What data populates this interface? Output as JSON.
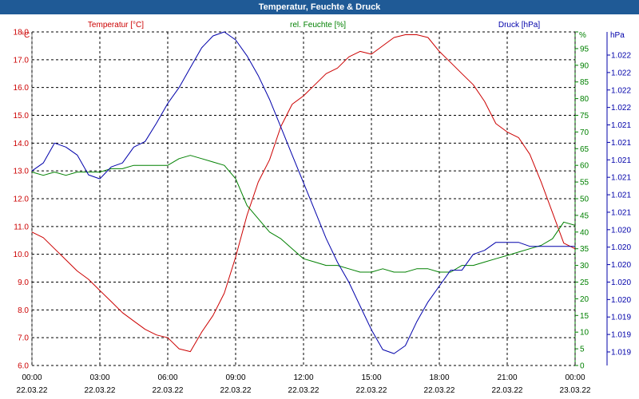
{
  "window": {
    "title": "Temperatur, Feuchte & Druck"
  },
  "colors": {
    "temperature": "#cc0000",
    "humidity": "#008000",
    "pressure": "#0000aa",
    "title_bar": "#1f5a96"
  },
  "chart_data": {
    "type": "line",
    "title": "Temperatur, Feuchte & Druck",
    "grid": true,
    "x_axis": {
      "range": [
        "22.03.22 00:00",
        "23.03.22 00:00"
      ],
      "ticks": [
        {
          "time": "00:00",
          "date": "22.03.22"
        },
        {
          "time": "03:00",
          "date": "22.03.22"
        },
        {
          "time": "06:00",
          "date": "22.03.22"
        },
        {
          "time": "09:00",
          "date": "22.03.22"
        },
        {
          "time": "12:00",
          "date": "22.03.22"
        },
        {
          "time": "15:00",
          "date": "22.03.22"
        },
        {
          "time": "18:00",
          "date": "22.03.22"
        },
        {
          "time": "21:00",
          "date": "22.03.22"
        },
        {
          "time": "00:00",
          "date": "23.03.22"
        }
      ]
    },
    "y_axes": {
      "temperature": {
        "legend": "Temperatur [°C]",
        "unit": "°C",
        "range": [
          6.0,
          18.0
        ],
        "ticks": [
          "18.0",
          "17.0",
          "16.0",
          "15.0",
          "14.0",
          "13.0",
          "12.0",
          "11.0",
          "10.0",
          "9.0",
          "8.0",
          "7.0",
          "6.0"
        ]
      },
      "humidity": {
        "legend": "rel. Feuchte [%]",
        "unit": "%",
        "range": [
          0,
          100
        ],
        "ticks": [
          "100",
          "95",
          "90",
          "85",
          "80",
          "75",
          "70",
          "65",
          "60",
          "55",
          "50",
          "45",
          "40",
          "35",
          "30",
          "25",
          "20",
          "15",
          "10",
          "5",
          "0"
        ]
      },
      "pressure": {
        "legend": "Druck [hPa]",
        "unit": "hPa",
        "range": [
          1018.8,
          1023.0
        ],
        "ticks": [
          "1.022",
          "1.022",
          "1.022",
          "1.022",
          "1.021",
          "1.021",
          "1.021",
          "1.021",
          "1.021",
          "1.021",
          "1.020",
          "1.020",
          "1.020",
          "1.020",
          "1.020",
          "1.019",
          "1.019",
          "1.019"
        ]
      }
    },
    "series": [
      {
        "name": "Temperatur [°C]",
        "axis": "temperature",
        "hours": [
          0,
          0.5,
          1,
          1.5,
          2,
          2.5,
          3,
          3.5,
          4,
          4.5,
          5,
          5.5,
          6,
          6.5,
          7,
          7.5,
          8,
          8.5,
          9,
          9.5,
          10,
          10.5,
          11,
          11.5,
          12,
          12.5,
          13,
          13.5,
          14,
          14.5,
          15,
          15.5,
          16,
          16.5,
          17,
          17.5,
          18,
          18.5,
          19,
          19.5,
          20,
          20.5,
          21,
          21.5,
          22,
          22.5,
          23,
          23.5,
          24
        ],
        "values": [
          10.8,
          10.6,
          10.2,
          9.8,
          9.4,
          9.1,
          8.7,
          8.3,
          7.9,
          7.6,
          7.3,
          7.1,
          7.0,
          6.6,
          6.5,
          7.2,
          7.8,
          8.6,
          9.9,
          11.4,
          12.6,
          13.4,
          14.6,
          15.4,
          15.7,
          16.1,
          16.5,
          16.7,
          17.1,
          17.3,
          17.2,
          17.5,
          17.8,
          17.9,
          17.9,
          17.8,
          17.3,
          16.9,
          16.5,
          16.1,
          15.5,
          14.7,
          14.4,
          14.2,
          13.6,
          12.6,
          11.5,
          10.4,
          10.2
        ]
      },
      {
        "name": "rel. Feuchte [%]",
        "axis": "humidity",
        "hours": [
          0,
          0.5,
          1,
          1.5,
          2,
          2.5,
          3,
          3.5,
          4,
          4.5,
          5,
          5.5,
          6,
          6.5,
          7,
          7.5,
          8,
          8.5,
          9,
          9.5,
          10,
          10.5,
          11,
          11.5,
          12,
          12.5,
          13,
          13.5,
          14,
          14.5,
          15,
          15.5,
          16,
          16.5,
          17,
          17.5,
          18,
          18.5,
          19,
          19.5,
          20,
          20.5,
          21,
          21.5,
          22,
          22.5,
          23,
          23.5,
          24
        ],
        "values": [
          58,
          57,
          58,
          57,
          58,
          58,
          58,
          59,
          59,
          60,
          60,
          60,
          60,
          62,
          63,
          62,
          61,
          60,
          56,
          48,
          44,
          40,
          38,
          35,
          32,
          31,
          30,
          30,
          29,
          28,
          28,
          29,
          28,
          28,
          29,
          29,
          28,
          28,
          30,
          30,
          31,
          32,
          33,
          34,
          35,
          36,
          38,
          43,
          42
        ]
      },
      {
        "name": "Druck [hPa]",
        "axis": "pressure",
        "hours": [
          0,
          0.5,
          1,
          1.5,
          2,
          2.5,
          3,
          3.5,
          4,
          4.5,
          5,
          5.5,
          6,
          6.5,
          7,
          7.5,
          8,
          8.5,
          9,
          9.5,
          10,
          10.5,
          11,
          11.5,
          12,
          12.5,
          13,
          13.5,
          14,
          14.5,
          15,
          15.5,
          16,
          16.5,
          17,
          17.5,
          18,
          18.5,
          19,
          19.5,
          20,
          20.5,
          21,
          21.5,
          22,
          22.5,
          23,
          23.5,
          24
        ],
        "values": [
          1021.25,
          1021.35,
          1021.6,
          1021.55,
          1021.45,
          1021.2,
          1021.15,
          1021.3,
          1021.35,
          1021.55,
          1021.62,
          1021.85,
          1022.1,
          1022.3,
          1022.55,
          1022.8,
          1022.95,
          1023.0,
          1022.9,
          1022.7,
          1022.45,
          1022.15,
          1021.8,
          1021.45,
          1021.1,
          1020.75,
          1020.4,
          1020.1,
          1019.85,
          1019.55,
          1019.25,
          1019.0,
          1018.95,
          1019.05,
          1019.35,
          1019.6,
          1019.8,
          1020.0,
          1020.0,
          1020.2,
          1020.25,
          1020.35,
          1020.35,
          1020.35,
          1020.3,
          1020.3,
          1020.3,
          1020.3,
          1020.3
        ]
      }
    ]
  }
}
